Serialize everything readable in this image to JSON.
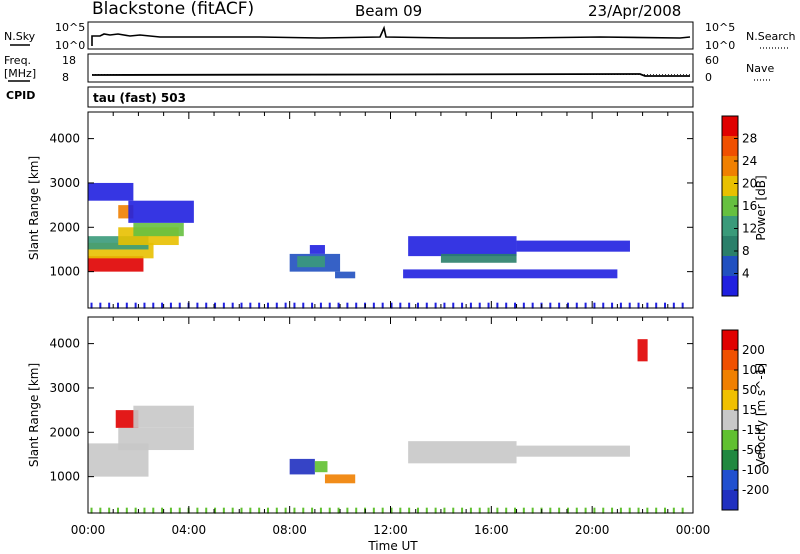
{
  "header": {
    "station": "Blackstone (fitACF)",
    "beam": "Beam 09",
    "date": "23/Apr/2008"
  },
  "left_labels": {
    "nsky": "N.Sky",
    "freq": "Freq.",
    "freq_unit": "[MHz]",
    "cpid": "CPID"
  },
  "right_labels": {
    "nsearch": "N.Search",
    "nave": "Nave"
  },
  "cpid_value": "tau (fast) 503",
  "colors": {
    "power": [
      "#2020e0",
      "#2050c0",
      "#2a7f6a",
      "#3a9a7a",
      "#66c040",
      "#e8c000",
      "#f08000",
      "#f05000",
      "#e00000"
    ],
    "velocity": [
      "#2030c0",
      "#2050d0",
      "#208840",
      "#60c030",
      "#c8c8c8",
      "#f0c000",
      "#f08000",
      "#f05000",
      "#e00000"
    ]
  },
  "chart_data": [
    {
      "type": "line",
      "title": "N.Sky / N.Search",
      "y_ticks_left": [
        "10^5",
        "10^0"
      ],
      "y_ticks_right": [
        "10^5",
        "10^0"
      ]
    },
    {
      "type": "line",
      "title": "Freq. / Nave",
      "y_ticks_left": [
        "18",
        "8"
      ],
      "y_ticks_right": [
        "60",
        "0"
      ]
    },
    {
      "type": "heatmap",
      "ylabel": "Slant Range [km]",
      "xlabel": "Time UT",
      "colorbar_label": "Power [dB]",
      "colorbar_ticks": [
        "28",
        "24",
        "20",
        "16",
        "12",
        "8",
        "4"
      ],
      "x_ticks": [
        "00:00",
        "04:00",
        "08:00",
        "12:00",
        "16:00",
        "20:00",
        "00:00"
      ],
      "y_ticks": [
        "4000",
        "3000",
        "2000",
        "1000"
      ],
      "xlim": [
        0,
        24
      ],
      "ylim": [
        180,
        4600
      ],
      "regions": [
        {
          "t0": 0.0,
          "t1": 2.2,
          "r0": 1000,
          "r1": 1350,
          "level": 8
        },
        {
          "t0": 0.0,
          "t1": 2.6,
          "r0": 1300,
          "r1": 1650,
          "level": 5
        },
        {
          "t0": 0.0,
          "t1": 2.4,
          "r0": 1500,
          "r1": 1800,
          "level": 3
        },
        {
          "t0": 1.2,
          "t1": 3.6,
          "r0": 1600,
          "r1": 2000,
          "level": 5
        },
        {
          "t0": 1.8,
          "t1": 3.8,
          "r0": 1800,
          "r1": 2100,
          "level": 4
        },
        {
          "t0": 1.2,
          "t1": 1.8,
          "r0": 2200,
          "r1": 2500,
          "level": 6
        },
        {
          "t0": 1.6,
          "t1": 4.2,
          "r0": 2100,
          "r1": 2600,
          "level": 0
        },
        {
          "t0": 0.0,
          "t1": 1.8,
          "r0": 2600,
          "r1": 3000,
          "level": 0
        },
        {
          "t0": 8.0,
          "t1": 10.0,
          "r0": 1000,
          "r1": 1400,
          "level": 1
        },
        {
          "t0": 8.3,
          "t1": 9.4,
          "r0": 1100,
          "r1": 1350,
          "level": 3
        },
        {
          "t0": 8.8,
          "t1": 9.4,
          "r0": 1400,
          "r1": 1600,
          "level": 0
        },
        {
          "t0": 9.8,
          "t1": 10.6,
          "r0": 850,
          "r1": 1000,
          "level": 1
        },
        {
          "t0": 12.7,
          "t1": 17.0,
          "r0": 1350,
          "r1": 1800,
          "level": 0
        },
        {
          "t0": 14.0,
          "t1": 17.0,
          "r0": 1200,
          "r1": 1400,
          "level": 2
        },
        {
          "t0": 17.0,
          "t1": 21.5,
          "r0": 1450,
          "r1": 1700,
          "level": 0
        },
        {
          "t0": 12.5,
          "t1": 21.0,
          "r0": 850,
          "r1": 1050,
          "level": 0
        }
      ]
    },
    {
      "type": "heatmap",
      "ylabel": "Slant Range [km]",
      "xlabel": "Time UT",
      "colorbar_label": "Velocity [m s^-1]",
      "colorbar_ticks": [
        "200",
        "100",
        "50",
        "15",
        "-15",
        "-50",
        "-100",
        "-200"
      ],
      "x_ticks": [
        "00:00",
        "04:00",
        "08:00",
        "12:00",
        "16:00",
        "20:00",
        "00:00"
      ],
      "y_ticks": [
        "4000",
        "3000",
        "2000",
        "1000"
      ],
      "xlim": [
        0,
        24
      ],
      "ylim": [
        180,
        4600
      ],
      "regions": [
        {
          "t0": 0.0,
          "t1": 2.4,
          "r0": 1000,
          "r1": 1750,
          "level": 4
        },
        {
          "t0": 1.2,
          "t1": 4.2,
          "r0": 1600,
          "r1": 2100,
          "level": 4
        },
        {
          "t0": 1.1,
          "t1": 2.0,
          "r0": 2100,
          "r1": 2500,
          "level": 8
        },
        {
          "t0": 1.8,
          "t1": 4.2,
          "r0": 2100,
          "r1": 2600,
          "level": 4
        },
        {
          "t0": 8.0,
          "t1": 9.0,
          "r0": 1050,
          "r1": 1400,
          "level": 0
        },
        {
          "t0": 9.0,
          "t1": 9.5,
          "r0": 1100,
          "r1": 1350,
          "level": 3
        },
        {
          "t0": 9.4,
          "t1": 10.6,
          "r0": 850,
          "r1": 1050,
          "level": 6
        },
        {
          "t0": 12.7,
          "t1": 17.0,
          "r0": 1300,
          "r1": 1800,
          "level": 4
        },
        {
          "t0": 17.0,
          "t1": 21.5,
          "r0": 1450,
          "r1": 1700,
          "level": 4
        },
        {
          "t0": 21.8,
          "t1": 22.2,
          "r0": 3600,
          "r1": 4100,
          "level": 8
        }
      ]
    }
  ]
}
